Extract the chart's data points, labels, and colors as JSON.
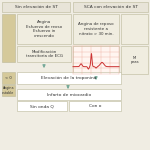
{
  "bg_color": "#f0ede3",
  "title_left": "Sin elevación de ST",
  "title_right": "SCA con elevación de ST",
  "angina_text": "Angina\nEsfuerzo de reoso\nEsfuerzo in\ncrescendo",
  "modif_text": "Modificación\ntransitoria de ECG",
  "angina_reposo_text": "Angina de reposo\nresistente a\nnitrato > 30 min.",
  "elev_tropo_text": "Elevación de la troponina",
  "infarto_text": "Infarto de miocardio",
  "sin_onda_text": "Sin onda Q",
  "con_onda_text": "Con o",
  "left_label1": "< 0",
  "left_label2": "Angina\nestable",
  "ecg_color": "#cc3333",
  "ecg_bg": "#fff5f0",
  "grid_color": "#f0b0a0",
  "arrow_color": "#77aa99",
  "box_color": "#f0ede0",
  "title_color": "#e8e4d8",
  "white": "#ffffff",
  "side_color": "#d5c99a",
  "border_color": "#bbb89a",
  "text_color": "#333333",
  "sf": 3.2
}
